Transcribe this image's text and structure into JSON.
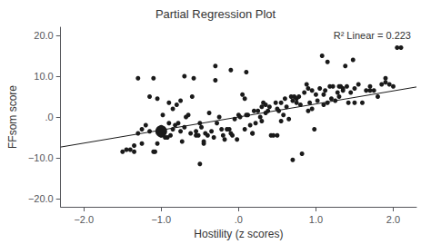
{
  "chart_data": {
    "type": "scatter",
    "title": "Partial Regression Plot",
    "xlabel": "Hostility (z scores)",
    "ylabel": "FFsom score",
    "annotation": "R² Linear = 0.223",
    "xlim": [
      -2.3,
      2.3
    ],
    "ylim": [
      -22,
      22
    ],
    "xticks": [
      {
        "value": -2.0,
        "label": "−2.0"
      },
      {
        "value": -1.0,
        "label": "−1.0"
      },
      {
        "value": 0.0,
        "label": ".0"
      },
      {
        "value": 1.0,
        "label": "1.0"
      },
      {
        "value": 2.0,
        "label": "2.0"
      }
    ],
    "yticks": [
      {
        "value": -20.0,
        "label": "−20.0"
      },
      {
        "value": -10.0,
        "label": "−10.0"
      },
      {
        "value": 0.0,
        "label": ".0"
      },
      {
        "value": 10.0,
        "label": "10.0"
      },
      {
        "value": 20.0,
        "label": "20.0"
      }
    ],
    "grid": false,
    "series": [
      {
        "type": "scatter",
        "marker": "circle",
        "color": "#1a1a1a",
        "x": [
          -1.5,
          -1.4,
          -1.35,
          -1.3,
          -1.25,
          -1.2,
          -1.15,
          -1.1,
          -1.08,
          -1.05,
          -1.02,
          -1.0,
          -1.0,
          -0.98,
          -0.95,
          -0.92,
          -0.9,
          -0.88,
          -0.85,
          -0.82,
          -0.8,
          -0.78,
          -0.75,
          -0.73,
          -0.7,
          -0.68,
          -0.65,
          -0.62,
          -0.6,
          -0.58,
          -0.55,
          -0.52,
          -0.5,
          -0.48,
          -0.45,
          -0.43,
          -0.4,
          -0.38,
          -0.35,
          -0.32,
          -0.3,
          -0.28,
          -0.25,
          -0.22,
          -0.2,
          -0.18,
          -0.15,
          -0.12,
          -0.1,
          -0.08,
          -0.05,
          -0.02,
          0.0,
          0.02,
          0.05,
          0.08,
          0.1,
          0.12,
          0.15,
          0.18,
          0.2,
          0.22,
          0.25,
          0.28,
          0.3,
          0.32,
          0.35,
          0.38,
          0.4,
          0.42,
          0.45,
          0.48,
          0.5,
          0.52,
          0.55,
          0.58,
          0.6,
          0.62,
          0.65,
          0.68,
          0.7,
          0.72,
          0.75,
          0.78,
          0.8,
          0.82,
          0.85,
          0.88,
          0.9,
          0.92,
          0.95,
          0.98,
          1.0,
          1.02,
          1.05,
          1.08,
          1.1,
          1.12,
          1.15,
          1.18,
          1.2,
          1.22,
          1.25,
          1.28,
          1.3,
          1.32,
          1.35,
          1.38,
          1.4,
          1.42,
          1.45,
          1.48,
          1.5,
          1.55,
          1.6,
          1.65,
          1.7,
          1.75,
          1.8,
          1.85,
          1.9,
          1.95,
          2.0,
          2.05,
          2.1,
          -1.3,
          -1.1,
          -0.9,
          -0.7,
          -0.5,
          -0.3,
          -0.1,
          0.1,
          0.3,
          0.5,
          0.7,
          0.9,
          1.1,
          1.3,
          1.5,
          1.7,
          1.9,
          -1.45,
          -1.35,
          -1.25,
          -1.15,
          -1.05,
          -0.85,
          -0.75,
          -0.55,
          -0.45,
          0.08,
          0.18,
          0.35,
          0.55,
          0.75,
          0.95,
          1.15,
          1.35
        ],
        "values": [
          -8.5,
          -8.0,
          -8.5,
          -4.0,
          -3.0,
          -2.0,
          5.0,
          -8.5,
          -8.5,
          4.5,
          -3.0,
          -4.5,
          -2.5,
          0.5,
          -5.0,
          -5.0,
          3.5,
          -4.5,
          2.0,
          -2.0,
          3.0,
          -1.5,
          -3.5,
          -6.0,
          -2.5,
          0.0,
          0.5,
          -4.0,
          5.0,
          9.5,
          -4.5,
          -4.5,
          -1.5,
          -2.5,
          -6.5,
          -4.0,
          -4.5,
          1.0,
          -3.5,
          -5.0,
          9.0,
          -1.5,
          0.0,
          -3.0,
          -4.5,
          -5.5,
          -3.0,
          -3.0,
          -4.0,
          -4.5,
          -0.5,
          -5.5,
          0.5,
          0.0,
          5.5,
          4.5,
          11.0,
          0.5,
          -2.0,
          -4.0,
          1.5,
          -1.5,
          1.5,
          0.0,
          2.5,
          3.5,
          3.0,
          1.5,
          2.5,
          -4.5,
          -4.5,
          3.5,
          2.0,
          1.5,
          3.5,
          0.5,
          4.5,
          2.5,
          -0.5,
          5.0,
          4.0,
          5.0,
          3.5,
          5.0,
          3.0,
          -9.0,
          6.0,
          8.0,
          7.0,
          3.5,
          2.0,
          -3.0,
          5.5,
          4.0,
          7.0,
          15.0,
          3.0,
          6.5,
          13.5,
          7.5,
          4.5,
          7.5,
          4.0,
          6.0,
          7.5,
          7.5,
          6.5,
          12.5,
          7.5,
          3.5,
          6.0,
          14.0,
          7.0,
          8.0,
          3.5,
          6.5,
          6.5,
          6.5,
          5.0,
          8.0,
          8.5,
          8.0,
          7.5,
          17.0,
          17.0,
          9.5,
          9.5,
          -1.5,
          10.0,
          -11.5,
          12.5,
          11.5,
          0.5,
          -1.0,
          -4.5,
          -10.5,
          1.5,
          5.5,
          5.0,
          3.5,
          7.5,
          9.5,
          -8.0,
          -7.0,
          -6.5,
          -3.5,
          -6.5,
          -3.0,
          4.0,
          -3.5,
          -6.0,
          -3.0,
          -4.0,
          1.0,
          -1.0,
          4.5,
          6.5,
          3.5,
          7.0
        ]
      },
      {
        "type": "scatter",
        "marker": "large",
        "color": "#1a1a1a",
        "x": [
          -1.0
        ],
        "values": [
          -3.5
        ]
      },
      {
        "type": "line",
        "line_style": "solid",
        "color": "#1a1a1a",
        "x": [
          -2.3,
          2.3
        ],
        "values": [
          -7.36,
          7.36
        ]
      }
    ]
  }
}
